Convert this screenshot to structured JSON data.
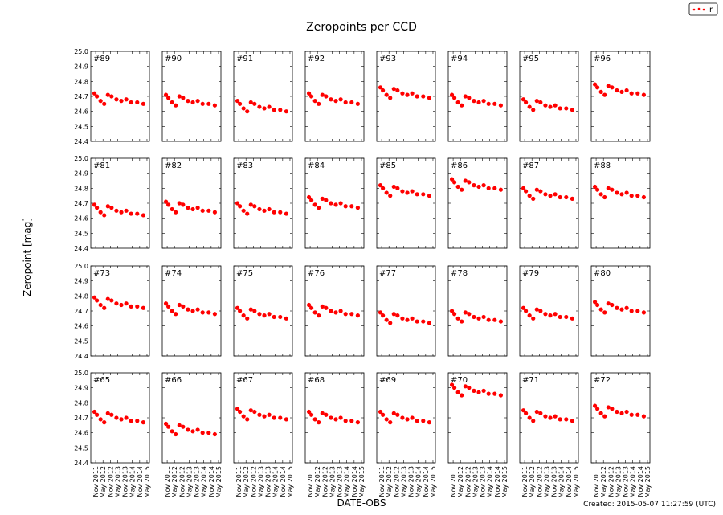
{
  "chart_data": {
    "type": "scatter",
    "title": "Zeropoints per CCD",
    "xlabel": "DATE-OBS",
    "ylabel": "Zeropoint [mag]",
    "ylim": [
      24.4,
      25.0
    ],
    "xlim": [
      "2011-07",
      "2015-07"
    ],
    "yticks": [
      "24.4",
      "24.5",
      "24.6",
      "24.7",
      "24.8",
      "24.9",
      "25.0"
    ],
    "xticks": [
      {
        "date": "2011-11",
        "label": "Nov 2011"
      },
      {
        "date": "2012-05",
        "label": "May 2012"
      },
      {
        "date": "2012-11",
        "label": "Nov 2012"
      },
      {
        "date": "2013-05",
        "label": "May 2013"
      },
      {
        "date": "2013-11",
        "label": "Nov 2013"
      },
      {
        "date": "2014-05",
        "label": "May 2014"
      },
      {
        "date": "2014-11",
        "label": "Nov 2014"
      },
      {
        "date": "2015-05",
        "label": "May 2015"
      }
    ],
    "legend": {
      "label": "r",
      "placement": "top-right"
    },
    "marker_color": "#ff0000",
    "grid": false,
    "x": [
      "2011-10",
      "2011-12",
      "2012-03",
      "2012-06",
      "2012-09",
      "2012-12",
      "2013-04",
      "2013-08",
      "2013-12",
      "2014-04",
      "2014-09",
      "2015-02"
    ],
    "panels": [
      {
        "label": "#89",
        "values": [
          24.72,
          24.7,
          24.67,
          24.65,
          24.71,
          24.7,
          24.68,
          24.67,
          24.68,
          24.66,
          24.66,
          24.65
        ]
      },
      {
        "label": "#90",
        "values": [
          24.71,
          24.69,
          24.66,
          24.64,
          24.7,
          24.69,
          24.67,
          24.66,
          24.67,
          24.65,
          24.65,
          24.64
        ]
      },
      {
        "label": "#91",
        "values": [
          24.67,
          24.65,
          24.62,
          24.6,
          24.66,
          24.65,
          24.63,
          24.62,
          24.63,
          24.61,
          24.61,
          24.6
        ]
      },
      {
        "label": "#92",
        "values": [
          24.72,
          24.7,
          24.67,
          24.65,
          24.71,
          24.7,
          24.68,
          24.67,
          24.68,
          24.66,
          24.66,
          24.65
        ]
      },
      {
        "label": "#93",
        "values": [
          24.76,
          24.74,
          24.71,
          24.69,
          24.75,
          24.74,
          24.72,
          24.71,
          24.72,
          24.7,
          24.7,
          24.69
        ]
      },
      {
        "label": "#94",
        "values": [
          24.71,
          24.69,
          24.66,
          24.64,
          24.7,
          24.69,
          24.67,
          24.66,
          24.67,
          24.65,
          24.65,
          24.64
        ]
      },
      {
        "label": "#95",
        "values": [
          24.68,
          24.66,
          24.63,
          24.61,
          24.67,
          24.66,
          24.64,
          24.63,
          24.64,
          24.62,
          24.62,
          24.61
        ]
      },
      {
        "label": "#96",
        "values": [
          24.78,
          24.76,
          24.73,
          24.71,
          24.77,
          24.76,
          24.74,
          24.73,
          24.74,
          24.72,
          24.72,
          24.71
        ]
      },
      {
        "label": "#81",
        "values": [
          24.69,
          24.67,
          24.64,
          24.62,
          24.68,
          24.67,
          24.65,
          24.64,
          24.65,
          24.63,
          24.63,
          24.62
        ]
      },
      {
        "label": "#82",
        "values": [
          24.71,
          24.69,
          24.66,
          24.64,
          24.7,
          24.69,
          24.67,
          24.66,
          24.67,
          24.65,
          24.65,
          24.64
        ]
      },
      {
        "label": "#83",
        "values": [
          24.7,
          24.68,
          24.65,
          24.63,
          24.69,
          24.68,
          24.66,
          24.65,
          24.66,
          24.64,
          24.64,
          24.63
        ]
      },
      {
        "label": "#84",
        "values": [
          24.74,
          24.72,
          24.69,
          24.67,
          24.73,
          24.72,
          24.7,
          24.69,
          24.7,
          24.68,
          24.68,
          24.67
        ]
      },
      {
        "label": "#85",
        "values": [
          24.82,
          24.8,
          24.77,
          24.75,
          24.81,
          24.8,
          24.78,
          24.77,
          24.78,
          24.76,
          24.76,
          24.75
        ]
      },
      {
        "label": "#86",
        "values": [
          24.86,
          24.84,
          24.81,
          24.79,
          24.85,
          24.84,
          24.82,
          24.81,
          24.82,
          24.8,
          24.8,
          24.79
        ]
      },
      {
        "label": "#87",
        "values": [
          24.8,
          24.78,
          24.75,
          24.73,
          24.79,
          24.78,
          24.76,
          24.75,
          24.76,
          24.74,
          24.74,
          24.73
        ]
      },
      {
        "label": "#88",
        "values": [
          24.81,
          24.79,
          24.76,
          24.74,
          24.8,
          24.79,
          24.77,
          24.76,
          24.77,
          24.75,
          24.75,
          24.74
        ]
      },
      {
        "label": "#73",
        "values": [
          24.79,
          24.77,
          24.74,
          24.72,
          24.78,
          24.77,
          24.75,
          24.74,
          24.75,
          24.73,
          24.73,
          24.72
        ]
      },
      {
        "label": "#74",
        "values": [
          24.75,
          24.73,
          24.7,
          24.68,
          24.74,
          24.73,
          24.71,
          24.7,
          24.71,
          24.69,
          24.69,
          24.68
        ]
      },
      {
        "label": "#75",
        "values": [
          24.72,
          24.7,
          24.67,
          24.65,
          24.71,
          24.7,
          24.68,
          24.67,
          24.68,
          24.66,
          24.66,
          24.65
        ]
      },
      {
        "label": "#76",
        "values": [
          24.74,
          24.72,
          24.69,
          24.67,
          24.73,
          24.72,
          24.7,
          24.69,
          24.7,
          24.68,
          24.68,
          24.67
        ]
      },
      {
        "label": "#77",
        "values": [
          24.69,
          24.67,
          24.64,
          24.62,
          24.68,
          24.67,
          24.65,
          24.64,
          24.65,
          24.63,
          24.63,
          24.62
        ]
      },
      {
        "label": "#78",
        "values": [
          24.7,
          24.68,
          24.65,
          24.63,
          24.69,
          24.68,
          24.66,
          24.65,
          24.66,
          24.64,
          24.64,
          24.63
        ]
      },
      {
        "label": "#79",
        "values": [
          24.72,
          24.7,
          24.67,
          24.65,
          24.71,
          24.7,
          24.68,
          24.67,
          24.68,
          24.66,
          24.66,
          24.65
        ]
      },
      {
        "label": "#80",
        "values": [
          24.76,
          24.74,
          24.71,
          24.69,
          24.75,
          24.74,
          24.72,
          24.71,
          24.72,
          24.7,
          24.7,
          24.69
        ]
      },
      {
        "label": "#65",
        "values": [
          24.74,
          24.72,
          24.69,
          24.67,
          24.73,
          24.72,
          24.7,
          24.69,
          24.7,
          24.68,
          24.68,
          24.67
        ]
      },
      {
        "label": "#66",
        "values": [
          24.66,
          24.64,
          24.61,
          24.59,
          24.65,
          24.64,
          24.62,
          24.61,
          24.62,
          24.6,
          24.6,
          24.59
        ]
      },
      {
        "label": "#67",
        "values": [
          24.76,
          24.74,
          24.71,
          24.69,
          24.75,
          24.74,
          24.72,
          24.71,
          24.72,
          24.7,
          24.7,
          24.69
        ]
      },
      {
        "label": "#68",
        "values": [
          24.74,
          24.72,
          24.69,
          24.67,
          24.73,
          24.72,
          24.7,
          24.69,
          24.7,
          24.68,
          24.68,
          24.67
        ]
      },
      {
        "label": "#69",
        "values": [
          24.74,
          24.72,
          24.69,
          24.67,
          24.73,
          24.72,
          24.7,
          24.69,
          24.7,
          24.68,
          24.68,
          24.67
        ]
      },
      {
        "label": "#70",
        "values": [
          24.92,
          24.9,
          24.87,
          24.85,
          24.91,
          24.9,
          24.88,
          24.87,
          24.88,
          24.86,
          24.86,
          24.85
        ]
      },
      {
        "label": "#71",
        "values": [
          24.75,
          24.73,
          24.7,
          24.68,
          24.74,
          24.73,
          24.71,
          24.7,
          24.71,
          24.69,
          24.69,
          24.68
        ]
      },
      {
        "label": "#72",
        "values": [
          24.78,
          24.76,
          24.73,
          24.71,
          24.77,
          24.76,
          24.74,
          24.73,
          24.74,
          24.72,
          24.72,
          24.71
        ]
      }
    ]
  },
  "footer": {
    "created": "Created: 2015-05-07 11:27:59 (UTC)"
  }
}
